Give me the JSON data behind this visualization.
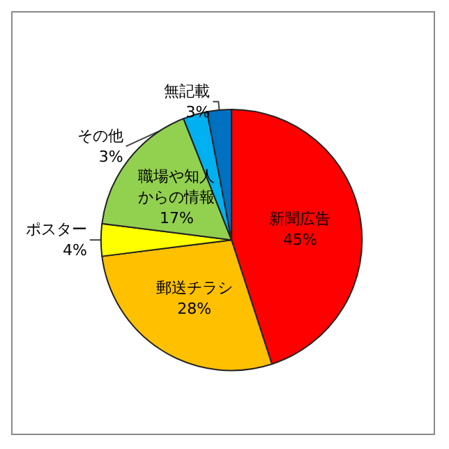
{
  "chart_data": {
    "type": "pie",
    "categories": [
      "新聞広告",
      "郵送チラシ",
      "ポスター",
      "職場や知人からの情報",
      "その他",
      "無記載"
    ],
    "values": [
      45,
      28,
      4,
      17,
      3,
      3
    ],
    "value_labels": [
      "45%",
      "28%",
      "4%",
      "17%",
      "3%",
      "3%"
    ],
    "colors": [
      "#ff0000",
      "#ffc000",
      "#ffff00",
      "#92d050",
      "#00b0f0",
      "#0070c0"
    ]
  }
}
